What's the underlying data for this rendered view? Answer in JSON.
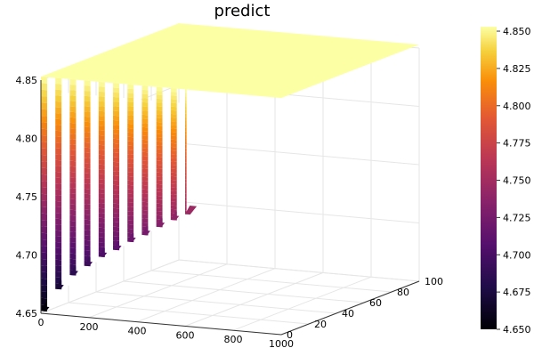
{
  "chart_data": {
    "type": "surface",
    "title": "predict",
    "xlabel": "",
    "ylabel": "",
    "zlabel": "",
    "x_range": [
      0,
      1000
    ],
    "y_range": [
      0,
      100
    ],
    "z_range": [
      4.65,
      4.85
    ],
    "x_ticks": [
      "0",
      "200",
      "400",
      "600",
      "800",
      "1000"
    ],
    "y_ticks": [
      "0",
      "20",
      "40",
      "60",
      "80",
      "100"
    ],
    "z_ticks": [
      "4.65",
      "4.70",
      "4.75",
      "4.80",
      "4.85"
    ],
    "colorbar": {
      "colormap": "inferno",
      "range": [
        4.65,
        4.853
      ],
      "ticks": [
        "4.650",
        "4.675",
        "4.700",
        "4.725",
        "4.750",
        "4.775",
        "4.800",
        "4.825",
        "4.850"
      ]
    },
    "surface_profile": {
      "plateau_value": 4.853,
      "dip_x_values": [
        0,
        60,
        120,
        180,
        240,
        300,
        360,
        420,
        480,
        540,
        600
      ],
      "dip_min_values": [
        4.652,
        4.672,
        4.685,
        4.694,
        4.703,
        4.71,
        4.718,
        4.725,
        4.733,
        4.74,
        4.746
      ],
      "flat_beyond_x": 600
    },
    "grid": true,
    "legend": "none"
  }
}
